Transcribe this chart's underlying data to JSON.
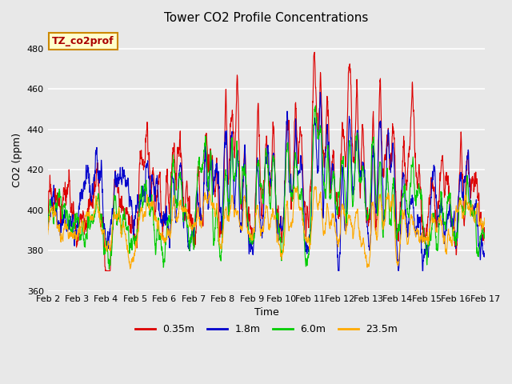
{
  "title": "Tower CO2 Profile Concentrations",
  "xlabel": "Time",
  "ylabel": "CO2 (ppm)",
  "ylim": [
    360,
    490
  ],
  "yticks": [
    360,
    380,
    400,
    420,
    440,
    460,
    480
  ],
  "xtick_labels": [
    "Feb 2",
    "Feb 3",
    "Feb 4",
    "Feb 5",
    "Feb 6",
    "Feb 7",
    "Feb 8",
    "Feb 9",
    "Feb 10",
    "Feb 11",
    "Feb 12",
    "Feb 13",
    "Feb 14",
    "Feb 15",
    "Feb 16",
    "Feb 17"
  ],
  "series_labels": [
    "0.35m",
    "1.8m",
    "6.0m",
    "23.5m"
  ],
  "series_colors": [
    "#dd0000",
    "#0000cc",
    "#00cc00",
    "#ffaa00"
  ],
  "series_linewidths": [
    0.8,
    0.8,
    0.8,
    0.8
  ],
  "legend_label": "TZ_co2prof",
  "legend_box_color": "#ffffcc",
  "legend_box_edge": "#cc8800",
  "legend_text_color": "#aa0000",
  "plot_bg_color": "#e8e8e8",
  "grid_color": "#ffffff",
  "fig_bg_color": "#e8e8e8",
  "n_points": 2160,
  "base_co2": 390,
  "seed": 17
}
